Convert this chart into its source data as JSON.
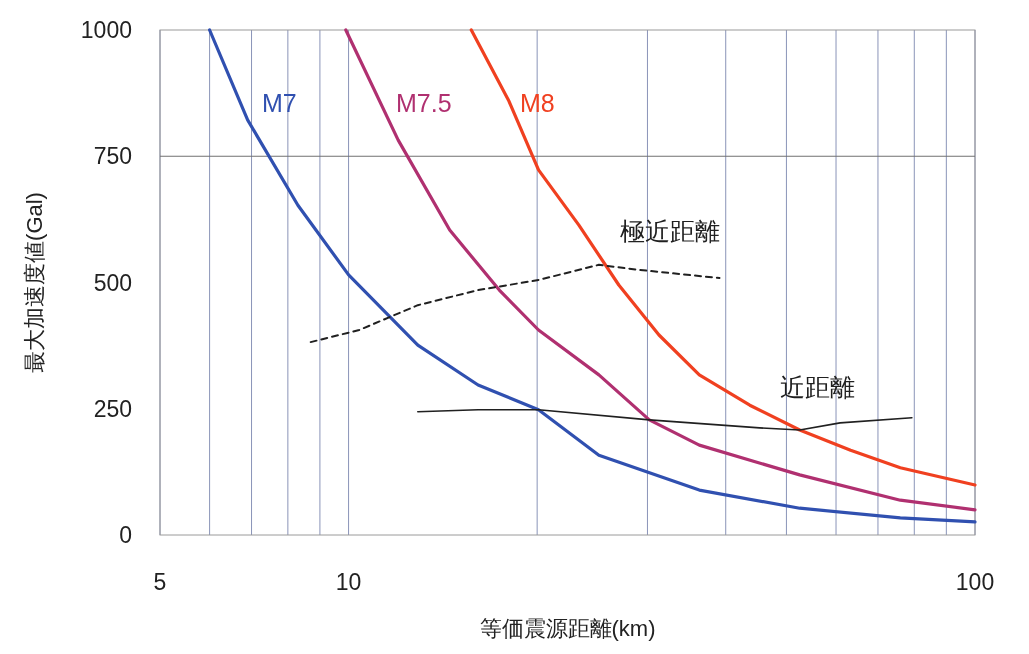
{
  "chart_data": {
    "type": "line",
    "xlabel": "等価震源距離(km)",
    "ylabel": "最大加速度値(Gal)",
    "log": "x",
    "xlim": [
      5,
      100
    ],
    "ylim": [
      0,
      1000
    ],
    "xticks": [
      5,
      {
        "value": 6,
        "label": null
      },
      {
        "value": 7,
        "label": null
      },
      {
        "value": 8,
        "label": null
      },
      {
        "value": 9,
        "label": null
      },
      10,
      {
        "value": 20,
        "label": null
      },
      {
        "value": 30,
        "label": null
      },
      {
        "value": 40,
        "label": null
      },
      {
        "value": 50,
        "label": null
      },
      {
        "value": 60,
        "label": null
      },
      {
        "value": 70,
        "label": null
      },
      {
        "value": 80,
        "label": null
      },
      {
        "value": 90,
        "label": null
      },
      100
    ],
    "yticks": [
      0,
      250,
      500,
      750,
      1000
    ],
    "grid": "x",
    "ref_lines": [
      {
        "axis": "y",
        "value": 750,
        "color": "#707070"
      }
    ],
    "series": [
      {
        "name": "M7",
        "color": "#3050b0",
        "x": [
          6.0,
          6.9,
          8.3,
          10,
          12.9,
          16.1,
          20.1,
          25.1,
          36.3,
          52.5,
          76,
          100
        ],
        "values": [
          1000,
          822,
          653,
          515,
          376,
          297,
          248,
          158,
          89,
          53,
          34,
          26
        ]
      },
      {
        "name": "M7.5",
        "color": "#b03070",
        "x": [
          9.9,
          12.0,
          14.5,
          17.4,
          20.1,
          25.1,
          30.2,
          36.3,
          52.5,
          76,
          100
        ],
        "values": [
          1000,
          782,
          604,
          485,
          406,
          317,
          228,
          178,
          119,
          69,
          50
        ]
      },
      {
        "name": "M8",
        "color": "#f04020",
        "x": [
          15.7,
          18.0,
          20.1,
          23.3,
          27.0,
          31.3,
          36.3,
          43.7,
          52.5,
          63.3,
          76,
          100
        ],
        "values": [
          1000,
          861,
          723,
          614,
          495,
          396,
          317,
          257,
          208,
          168,
          133,
          99
        ]
      },
      {
        "name": "極近距離",
        "color": "#202020",
        "line_style": "dashed",
        "x": [
          8.7,
          10.4,
          12.9,
          16.1,
          20.1,
          25.1,
          29.1,
          39.1
        ],
        "values": [
          382,
          406,
          455,
          485,
          505,
          535,
          525,
          509
        ]
      },
      {
        "name": "近距離",
        "color": "#202020",
        "line_style": "solid",
        "x": [
          12.9,
          16.1,
          20.1,
          30.2,
          45.3,
          52.5,
          60.9,
          79.3
        ],
        "values": [
          244,
          248,
          248,
          228,
          212,
          208,
          222,
          232
        ]
      }
    ]
  }
}
